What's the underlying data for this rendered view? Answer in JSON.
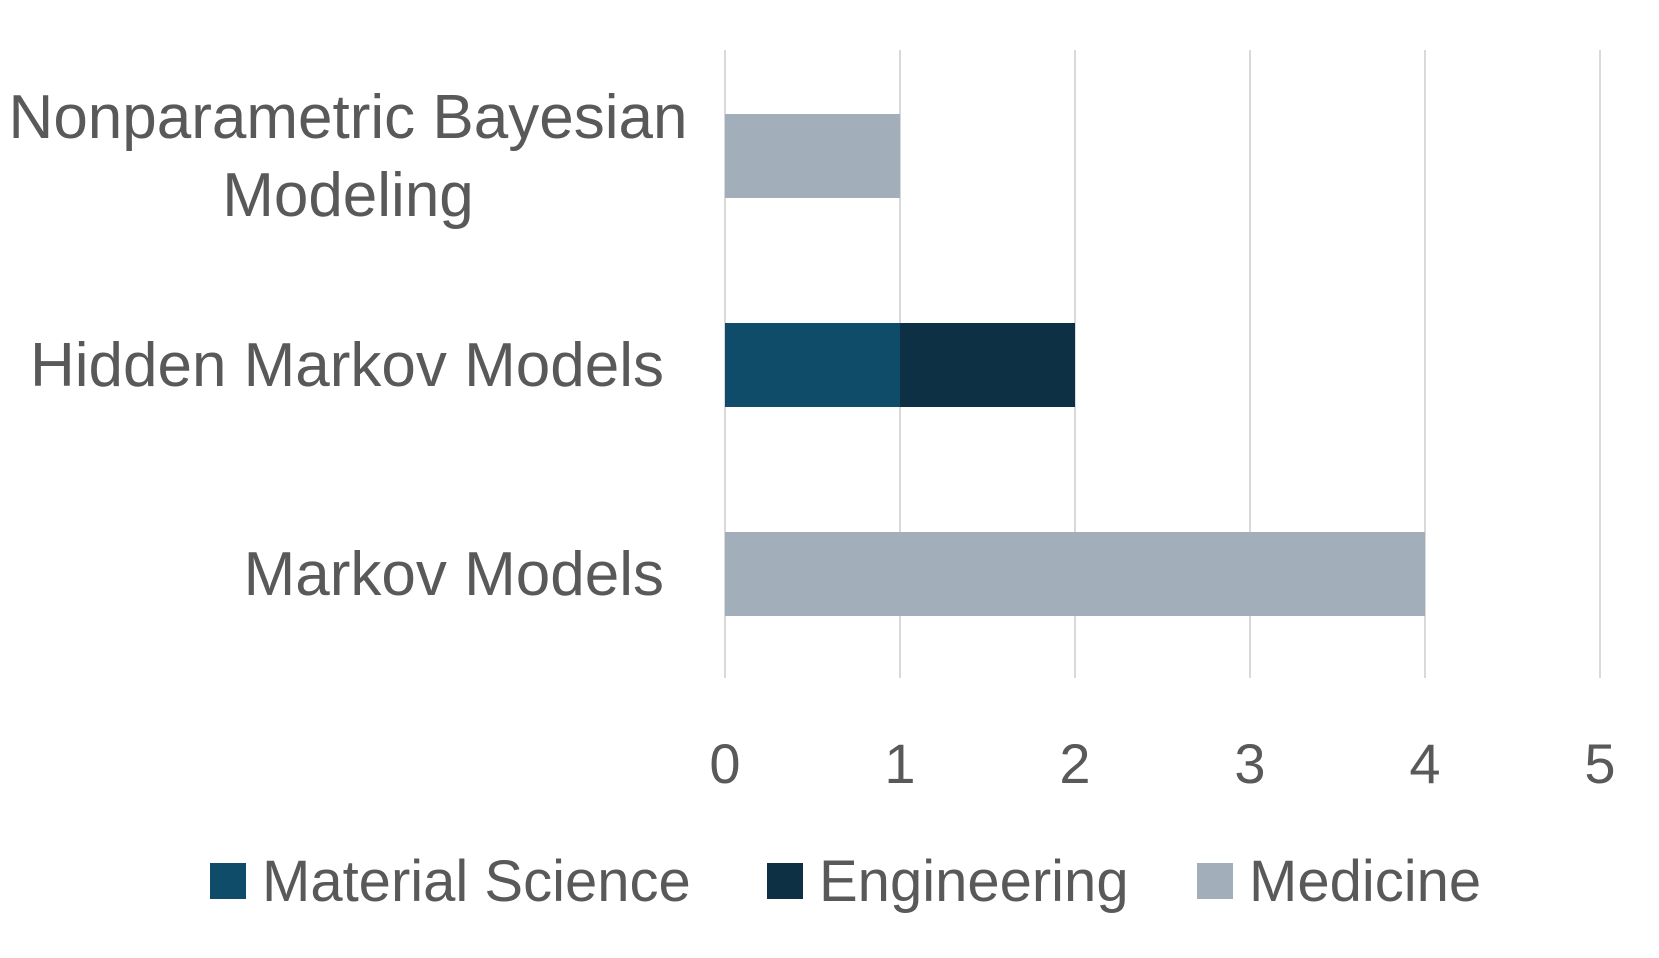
{
  "chart_data": {
    "type": "bar",
    "orientation": "horizontal",
    "stacked": true,
    "categories": [
      [
        "Nonparametric Bayesian",
        "Modeling"
      ],
      [
        "Hidden Markov Models"
      ],
      [
        "Markov Models"
      ]
    ],
    "series": [
      {
        "name": "Material Science",
        "color": "#0f4c6a",
        "values": [
          0,
          1,
          0
        ]
      },
      {
        "name": "Engineering",
        "color": "#0d3044",
        "values": [
          0,
          1,
          0
        ]
      },
      {
        "name": "Medicine",
        "color": "#a2afba",
        "values": [
          1,
          0,
          4
        ]
      }
    ],
    "xlim": [
      0,
      5
    ],
    "xticks": [
      "0",
      "1",
      "2",
      "3",
      "4",
      "5"
    ],
    "grid": true,
    "legend_position": "bottom",
    "title": "",
    "xlabel": "",
    "ylabel": ""
  }
}
